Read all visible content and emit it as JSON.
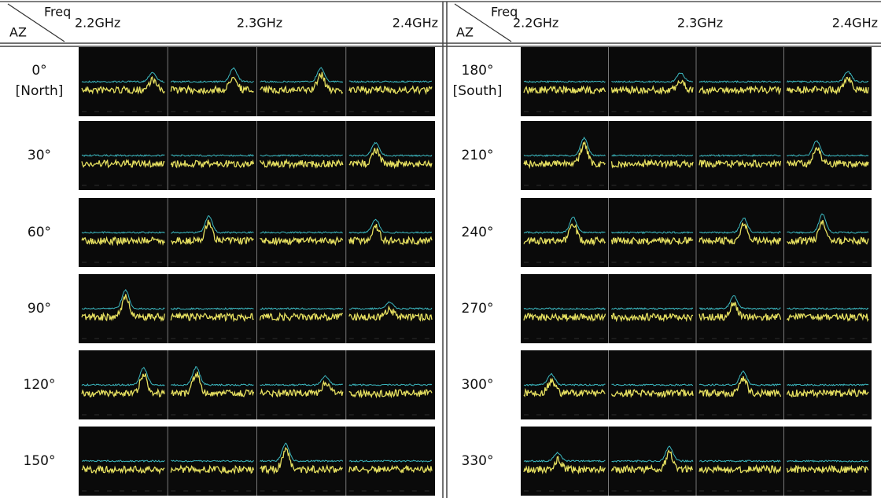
{
  "panels": [
    {
      "header": {
        "freq_label": "Freq",
        "az_label": "AZ",
        "frequencies": [
          "2.2GHz",
          "2.3GHz",
          "2.4GHz"
        ]
      },
      "rows": [
        {
          "angle": "0°",
          "direction": "[North]"
        },
        {
          "angle": "30°"
        },
        {
          "angle": "60°"
        },
        {
          "angle": "90°"
        },
        {
          "angle": "120°"
        },
        {
          "angle": "150°"
        }
      ]
    },
    {
      "header": {
        "freq_label": "Freq",
        "az_label": "AZ",
        "frequencies": [
          "2.2GHz",
          "2.3GHz",
          "2.4GHz"
        ]
      },
      "rows": [
        {
          "angle": "180°",
          "direction": "[South]"
        },
        {
          "angle": "210°"
        },
        {
          "angle": "240°"
        },
        {
          "angle": "270°"
        },
        {
          "angle": "300°"
        },
        {
          "angle": "330°"
        }
      ]
    }
  ]
}
